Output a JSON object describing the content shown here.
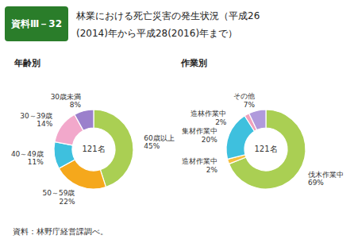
{
  "title": [
    "林業における死亡災害の発生状況（平成26",
    "(2014)年から平成28(2016)年まで）"
  ],
  "annotations": [
    "資料Ⅲ－32",
    "資料：林野庁経営課調べ。"
  ],
  "chart_data": [
    {
      "type": "pie",
      "title": "年齢別",
      "categories": [
        "60歳以上",
        "50～59歳",
        "40～49歳",
        "30～39歳",
        "30歳未満"
      ],
      "values": [
        45,
        22,
        11,
        14,
        8
      ],
      "value_labels": [
        "45%",
        "22%",
        "11%",
        "14%",
        "8%"
      ],
      "colors": [
        "#aacf53",
        "#f5a81c",
        "#3ec0de",
        "#f2a8cb",
        "#9b80cc"
      ],
      "annotations": [
        "121名"
      ],
      "data_labels": true
    },
    {
      "type": "pie",
      "title": "作業別",
      "categories": [
        "伐木作業中",
        "造材作業中",
        "集材作業中",
        "造林作業中",
        "その他"
      ],
      "values": [
        69,
        2,
        20,
        2,
        7
      ],
      "value_labels": [
        "69%",
        "2%",
        "20%",
        "2%",
        "7%"
      ],
      "colors": [
        "#aacf53",
        "#f5c040",
        "#3ec0de",
        "#f0a0bc",
        "#b09adc"
      ],
      "annotations": [
        "121名"
      ],
      "data_labels": true
    }
  ]
}
